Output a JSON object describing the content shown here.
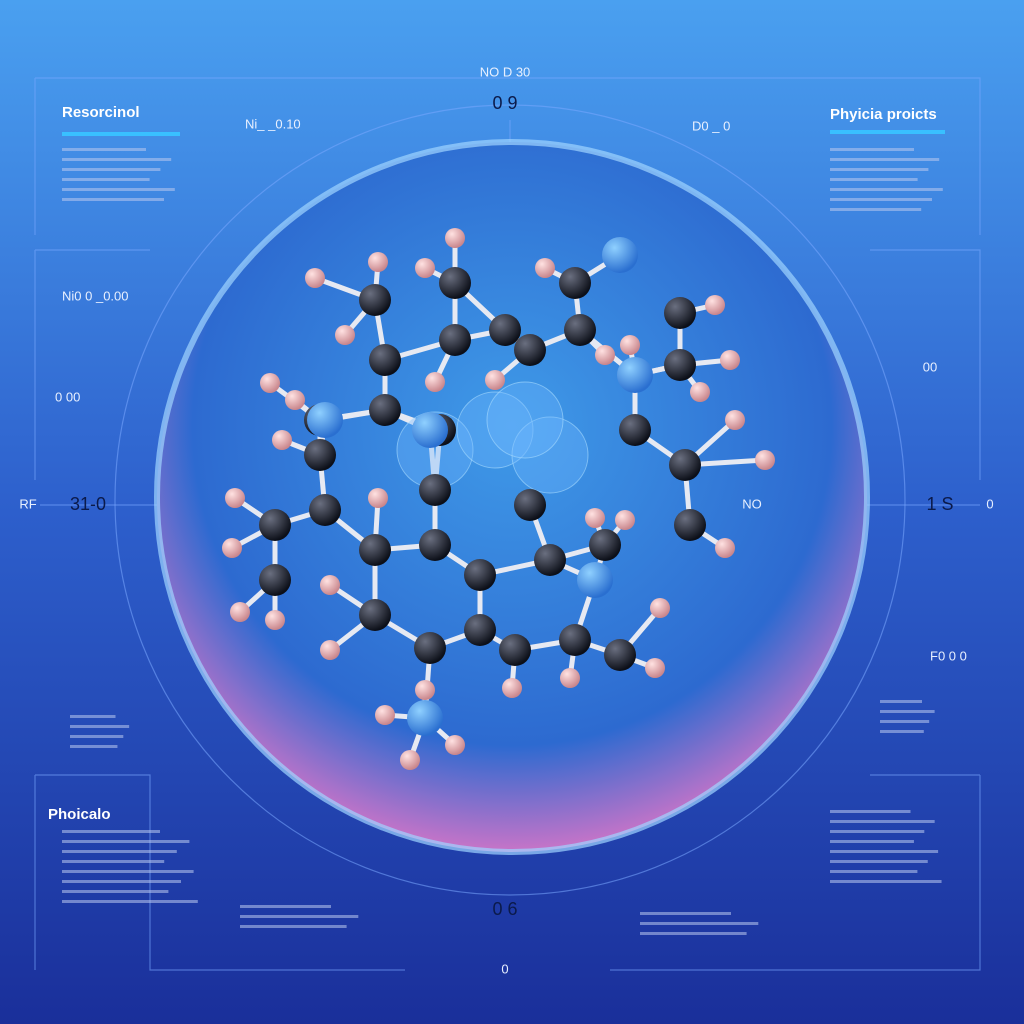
{
  "panels": {
    "top_left": {
      "title": "Resorcinol"
    },
    "top_right": {
      "title": "Phyicia proicts"
    },
    "bottom_left": {
      "title": "Phoicalo"
    }
  },
  "readouts": {
    "top": "0 9",
    "top_small": "NO D 30",
    "left": "31-0",
    "left_prefix": "RF",
    "right": "1 S",
    "right_suffix": "0",
    "bottom": "0 6",
    "bottom_small": "0",
    "inner_right": "NO",
    "right_upper": "00",
    "left_upper": "Ni0 0 _0.00",
    "left_mid": "0 00",
    "right_lower": "F0 0 0",
    "top_right_small": "D0 _ 0",
    "top_left_small": "Ni_ _0.10"
  }
}
